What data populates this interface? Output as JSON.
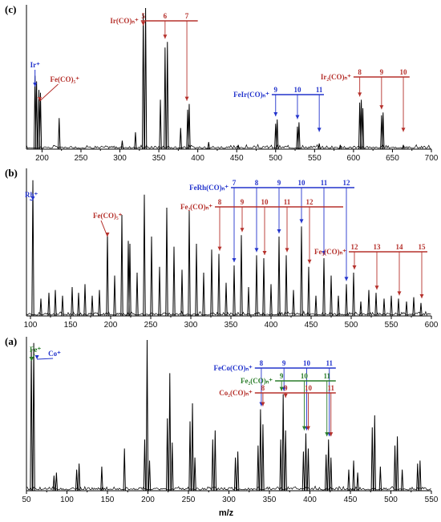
{
  "colors": {
    "red": "#b5302b",
    "blue": "#2233cc",
    "green": "#2a7d2a",
    "trace": "#000000"
  },
  "xlabel": "m/z",
  "chart_data": [
    {
      "type": "line",
      "panel_label": "(c)",
      "xlim": [
        180,
        700
      ],
      "xticks": [
        200,
        250,
        300,
        350,
        400,
        450,
        500,
        550,
        600,
        650,
        700
      ],
      "peaks": [
        [
          191,
          0.52
        ],
        [
          193,
          0.48
        ],
        [
          196,
          0.42
        ],
        [
          198,
          0.4
        ],
        [
          222,
          0.22
        ],
        [
          303,
          0.06
        ],
        [
          320,
          0.12
        ],
        [
          330,
          0.96
        ],
        [
          333,
          1.0
        ],
        [
          352,
          0.35
        ],
        [
          358,
          0.72
        ],
        [
          361,
          0.76
        ],
        [
          378,
          0.15
        ],
        [
          387,
          0.28
        ],
        [
          389,
          0.32
        ],
        [
          500,
          0.18
        ],
        [
          502,
          0.21
        ],
        [
          528,
          0.16
        ],
        [
          530,
          0.19
        ],
        [
          556,
          0.04
        ],
        [
          608,
          0.33
        ],
        [
          610,
          0.35
        ],
        [
          612,
          0.29
        ],
        [
          636,
          0.24
        ],
        [
          638,
          0.26
        ],
        [
          664,
          0.03
        ],
        [
          414,
          0.05
        ],
        [
          452,
          0.03
        ],
        [
          583,
          0.03
        ]
      ],
      "annotations": [
        {
          "text": "Ir⁺",
          "x": 191,
          "color": "blue"
        },
        {
          "text": "Fe(CO)₅⁺",
          "x": 196,
          "color": "red"
        }
      ],
      "progressions": [
        {
          "label": "Ir(CO)ₙ⁺",
          "color": "red",
          "bar_x": [
            327,
            400
          ],
          "items": [
            {
              "n": "5",
              "x": 330
            },
            {
              "n": "6",
              "x": 358
            },
            {
              "n": "7",
              "x": 386
            }
          ]
        },
        {
          "label": "FeIr(CO)ₙ⁺",
          "color": "blue",
          "bar_x": [
            495,
            562
          ],
          "items": [
            {
              "n": "9",
              "x": 500
            },
            {
              "n": "10",
              "x": 528
            },
            {
              "n": "11",
              "x": 556
            }
          ]
        },
        {
          "label": "Ir₂(CO)ₙ⁺",
          "color": "red",
          "bar_x": [
            600,
            672
          ],
          "items": [
            {
              "n": "8",
              "x": 608
            },
            {
              "n": "9",
              "x": 636
            },
            {
              "n": "10",
              "x": 664
            }
          ]
        }
      ]
    },
    {
      "type": "line",
      "panel_label": "(b)",
      "xlim": [
        95,
        600
      ],
      "xticks": [
        100,
        150,
        200,
        250,
        300,
        350,
        400,
        450,
        500,
        550,
        600
      ],
      "peaks": [
        [
          103,
          0.94
        ],
        [
          113,
          0.12
        ],
        [
          123,
          0.16
        ],
        [
          131,
          0.18
        ],
        [
          140,
          0.14
        ],
        [
          152,
          0.2
        ],
        [
          160,
          0.16
        ],
        [
          168,
          0.22
        ],
        [
          177,
          0.14
        ],
        [
          186,
          0.18
        ],
        [
          196,
          0.57
        ],
        [
          205,
          0.28
        ],
        [
          214,
          0.7
        ],
        [
          222,
          0.52
        ],
        [
          224,
          0.5
        ],
        [
          233,
          0.3
        ],
        [
          242,
          0.84
        ],
        [
          251,
          0.55
        ],
        [
          261,
          0.34
        ],
        [
          270,
          0.75
        ],
        [
          279,
          0.48
        ],
        [
          289,
          0.32
        ],
        [
          298,
          0.73
        ],
        [
          307,
          0.5
        ],
        [
          316,
          0.3
        ],
        [
          326,
          0.46
        ],
        [
          335,
          0.43
        ],
        [
          344,
          0.23
        ],
        [
          354,
          0.35
        ],
        [
          363,
          0.56
        ],
        [
          372,
          0.2
        ],
        [
          382,
          0.42
        ],
        [
          391,
          0.4
        ],
        [
          400,
          0.22
        ],
        [
          410,
          0.55
        ],
        [
          419,
          0.42
        ],
        [
          428,
          0.18
        ],
        [
          438,
          0.62
        ],
        [
          447,
          0.34
        ],
        [
          456,
          0.14
        ],
        [
          466,
          0.4
        ],
        [
          475,
          0.28
        ],
        [
          484,
          0.14
        ],
        [
          494,
          0.22
        ],
        [
          503,
          0.3
        ],
        [
          512,
          0.1
        ],
        [
          522,
          0.18
        ],
        [
          531,
          0.16
        ],
        [
          541,
          0.12
        ],
        [
          550,
          0.14
        ],
        [
          559,
          0.12
        ],
        [
          569,
          0.1
        ],
        [
          578,
          0.13
        ],
        [
          587,
          0.09
        ]
      ],
      "annotations": [
        {
          "text": "Rh⁺",
          "x": 103,
          "color": "blue"
        },
        {
          "text": "Fe(CO)₅⁺",
          "x": 196,
          "color": "red"
        }
      ],
      "progressions": [
        {
          "label": "FeRh(CO)ₙ⁺",
          "color": "blue",
          "bar_x": [
            350,
            504
          ],
          "items": [
            {
              "n": "7",
              "x": 354
            },
            {
              "n": "8",
              "x": 382
            },
            {
              "n": "9",
              "x": 410
            },
            {
              "n": "10",
              "x": 438
            },
            {
              "n": "11",
              "x": 466
            },
            {
              "n": "12",
              "x": 494
            }
          ]
        },
        {
          "label": "Fe₂(CO)ₙ⁺",
          "color": "red",
          "bar_x": [
            330,
            490
          ],
          "items": [
            {
              "n": "8",
              "x": 336
            },
            {
              "n": "9",
              "x": 364
            },
            {
              "n": "10",
              "x": 392
            },
            {
              "n": "11",
              "x": 420
            },
            {
              "n": "12",
              "x": 448
            }
          ]
        },
        {
          "label": "Fe₃(CO)ₙ⁺",
          "color": "red",
          "bar_x": [
            497,
            595
          ],
          "items": [
            {
              "n": "12",
              "x": 504
            },
            {
              "n": "13",
              "x": 532
            },
            {
              "n": "14",
              "x": 560
            },
            {
              "n": "15",
              "x": 588
            }
          ]
        }
      ]
    },
    {
      "type": "line",
      "panel_label": "(a)",
      "xlim": [
        50,
        550
      ],
      "xticks": [
        50,
        100,
        150,
        200,
        250,
        300,
        350,
        400,
        450,
        500,
        550
      ],
      "peaks": [
        [
          56,
          0.94
        ],
        [
          59,
          0.98
        ],
        [
          84,
          0.1
        ],
        [
          87,
          0.12
        ],
        [
          112,
          0.14
        ],
        [
          115,
          0.18
        ],
        [
          143,
          0.16
        ],
        [
          171,
          0.28
        ],
        [
          196,
          0.34
        ],
        [
          199,
          1.0
        ],
        [
          202,
          0.2
        ],
        [
          224,
          0.48
        ],
        [
          227,
          0.78
        ],
        [
          230,
          0.32
        ],
        [
          252,
          0.46
        ],
        [
          255,
          0.58
        ],
        [
          258,
          0.22
        ],
        [
          280,
          0.34
        ],
        [
          283,
          0.4
        ],
        [
          308,
          0.22
        ],
        [
          311,
          0.26
        ],
        [
          336,
          0.3
        ],
        [
          339,
          0.54
        ],
        [
          342,
          0.44
        ],
        [
          364,
          0.34
        ],
        [
          367,
          0.64
        ],
        [
          370,
          0.4
        ],
        [
          392,
          0.26
        ],
        [
          395,
          0.38
        ],
        [
          398,
          0.28
        ],
        [
          420,
          0.24
        ],
        [
          423,
          0.34
        ],
        [
          426,
          0.22
        ],
        [
          454,
          0.2
        ],
        [
          477,
          0.42
        ],
        [
          480,
          0.5
        ],
        [
          505,
          0.3
        ],
        [
          508,
          0.36
        ],
        [
          533,
          0.18
        ],
        [
          536,
          0.2
        ],
        [
          448,
          0.14
        ],
        [
          459,
          0.12
        ],
        [
          487,
          0.16
        ],
        [
          514,
          0.14
        ]
      ],
      "annotations": [
        {
          "text": "Fe⁺",
          "x": 56,
          "color": "green"
        },
        {
          "text": "Co⁺",
          "x": 59,
          "color": "blue"
        }
      ],
      "progressions": [
        {
          "label": "FeCo(CO)ₙ⁺",
          "color": "blue",
          "bar_x": [
            332,
            432
          ],
          "items": [
            {
              "n": "8",
              "x": 340
            },
            {
              "n": "9",
              "x": 368
            },
            {
              "n": "10",
              "x": 396
            },
            {
              "n": "11",
              "x": 424
            }
          ]
        },
        {
          "label": "Fe₂(CO)ₙ⁺",
          "color": "green",
          "bar_x": [
            357,
            432
          ],
          "items": [
            {
              "n": "9",
              "x": 365
            },
            {
              "n": "10",
              "x": 393
            },
            {
              "n": "11",
              "x": 421
            }
          ]
        },
        {
          "label": "Co₂(CO)ₙ⁺",
          "color": "red",
          "bar_x": [
            332,
            432
          ],
          "items": [
            {
              "n": "8",
              "x": 342
            },
            {
              "n": "9",
              "x": 370
            },
            {
              "n": "10",
              "x": 398
            },
            {
              "n": "11",
              "x": 426
            }
          ]
        }
      ]
    }
  ]
}
